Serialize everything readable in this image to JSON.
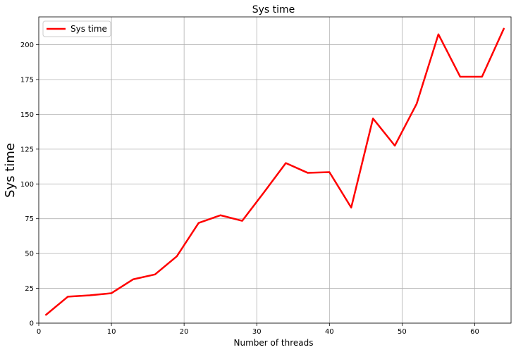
{
  "chart_data": {
    "type": "line",
    "title": "Sys time",
    "xlabel": "Number of threads",
    "ylabel": "Sys time",
    "xlim": [
      0,
      65
    ],
    "ylim": [
      0,
      220
    ],
    "xticks": [
      0,
      10,
      20,
      30,
      40,
      50,
      60
    ],
    "yticks": [
      0,
      25,
      50,
      75,
      100,
      125,
      150,
      175,
      200
    ],
    "grid": true,
    "legend_position": "top-left",
    "series": [
      {
        "name": "Sys time",
        "color": "#ff0000",
        "x": [
          1,
          4,
          7,
          10,
          13,
          16,
          19,
          22,
          25,
          28,
          31,
          34,
          37,
          40,
          43,
          46,
          49,
          52,
          55,
          58,
          61,
          64
        ],
        "y": [
          6,
          19,
          20,
          21.5,
          31.5,
          35,
          48,
          72,
          77.5,
          73.5,
          94,
          115,
          108,
          108.5,
          83,
          147,
          127.5,
          157.5,
          207.5,
          177,
          177,
          211.5
        ]
      }
    ]
  }
}
